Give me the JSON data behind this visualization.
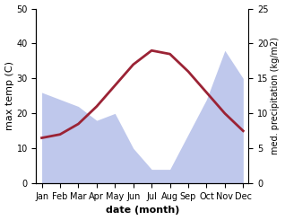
{
  "months": [
    "Jan",
    "Feb",
    "Mar",
    "Apr",
    "May",
    "Jun",
    "Jul",
    "Aug",
    "Sep",
    "Oct",
    "Nov",
    "Dec"
  ],
  "temp_max": [
    13,
    14,
    17,
    22,
    28,
    34,
    38,
    37,
    32,
    26,
    20,
    15
  ],
  "precipitation": [
    13,
    12,
    11,
    9,
    10,
    5,
    2,
    2,
    7,
    12,
    19,
    15
  ],
  "temp_color": "#9b2335",
  "precip_fill_color": "#bfc8ec",
  "temp_ylim": [
    0,
    50
  ],
  "precip_ylim": [
    0,
    25
  ],
  "xlabel": "date (month)",
  "ylabel_left": "max temp (C)",
  "ylabel_right": "med. precipitation (kg/m2)",
  "label_fontsize": 8,
  "tick_fontsize": 7,
  "yticks_left": [
    0,
    10,
    20,
    30,
    40,
    50
  ],
  "yticks_right": [
    0,
    5,
    10,
    15,
    20,
    25
  ]
}
